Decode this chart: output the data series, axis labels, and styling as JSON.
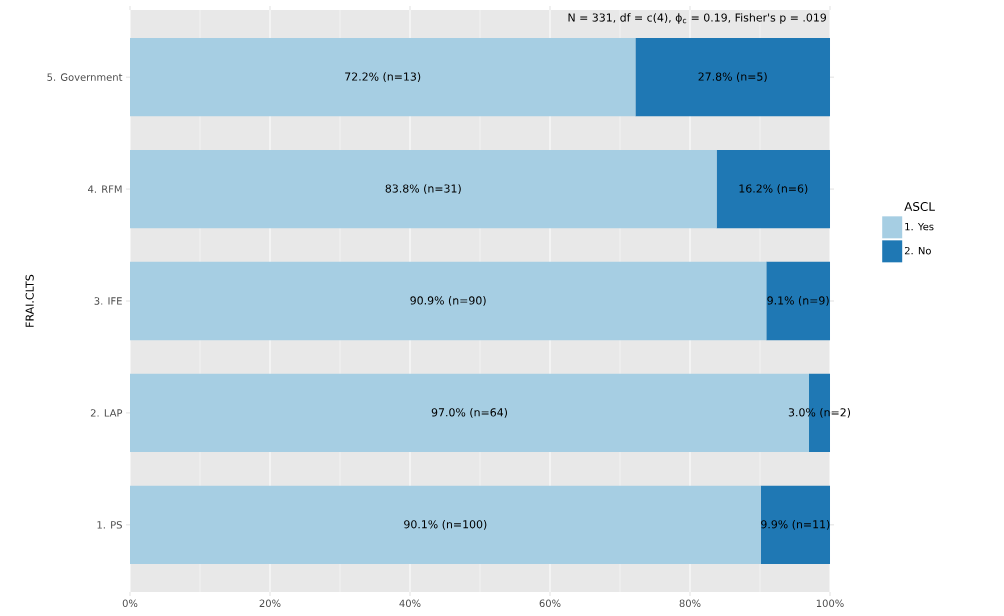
{
  "chart_data": {
    "type": "bar",
    "orientation": "horizontal",
    "stacked": true,
    "categories": [
      "5. Government",
      "4. RFM",
      "3. IFE",
      "2. LAP",
      "1. PS"
    ],
    "series": [
      {
        "name": "1. Yes",
        "color": "#a6cee3",
        "values": [
          72.2,
          83.8,
          90.9,
          97.0,
          90.1
        ],
        "value_labels": [
          "72.2% (n=13)",
          "83.8% (n=31)",
          "90.9% (n=90)",
          "97.0% (n=64)",
          "90.1% (n=100)"
        ]
      },
      {
        "name": "2. No",
        "color": "#1f78b4",
        "values": [
          27.8,
          16.2,
          9.1,
          3.0,
          9.9
        ],
        "value_labels": [
          "27.8% (n=5)",
          "16.2% (n=6)",
          "9.1% (n=9)",
          "3.0% (n=2)",
          "9.9% (n=11)"
        ]
      }
    ],
    "xlim": [
      0,
      100
    ],
    "xticks": [
      {
        "value": 0,
        "label": "0%"
      },
      {
        "value": 20,
        "label": "20%"
      },
      {
        "value": 40,
        "label": "40%"
      },
      {
        "value": 60,
        "label": "60%"
      },
      {
        "value": 80,
        "label": "80%"
      },
      {
        "value": 100,
        "label": "100%"
      }
    ],
    "ylabel": "FRAI.CLTS",
    "legend_title": "ASCL",
    "legend": "right",
    "grid": "x",
    "annotations": [
      "N = 331,  df = c(4),  ϕ$_{c}$ = 0.19,  Fisher's p = .019"
    ]
  }
}
